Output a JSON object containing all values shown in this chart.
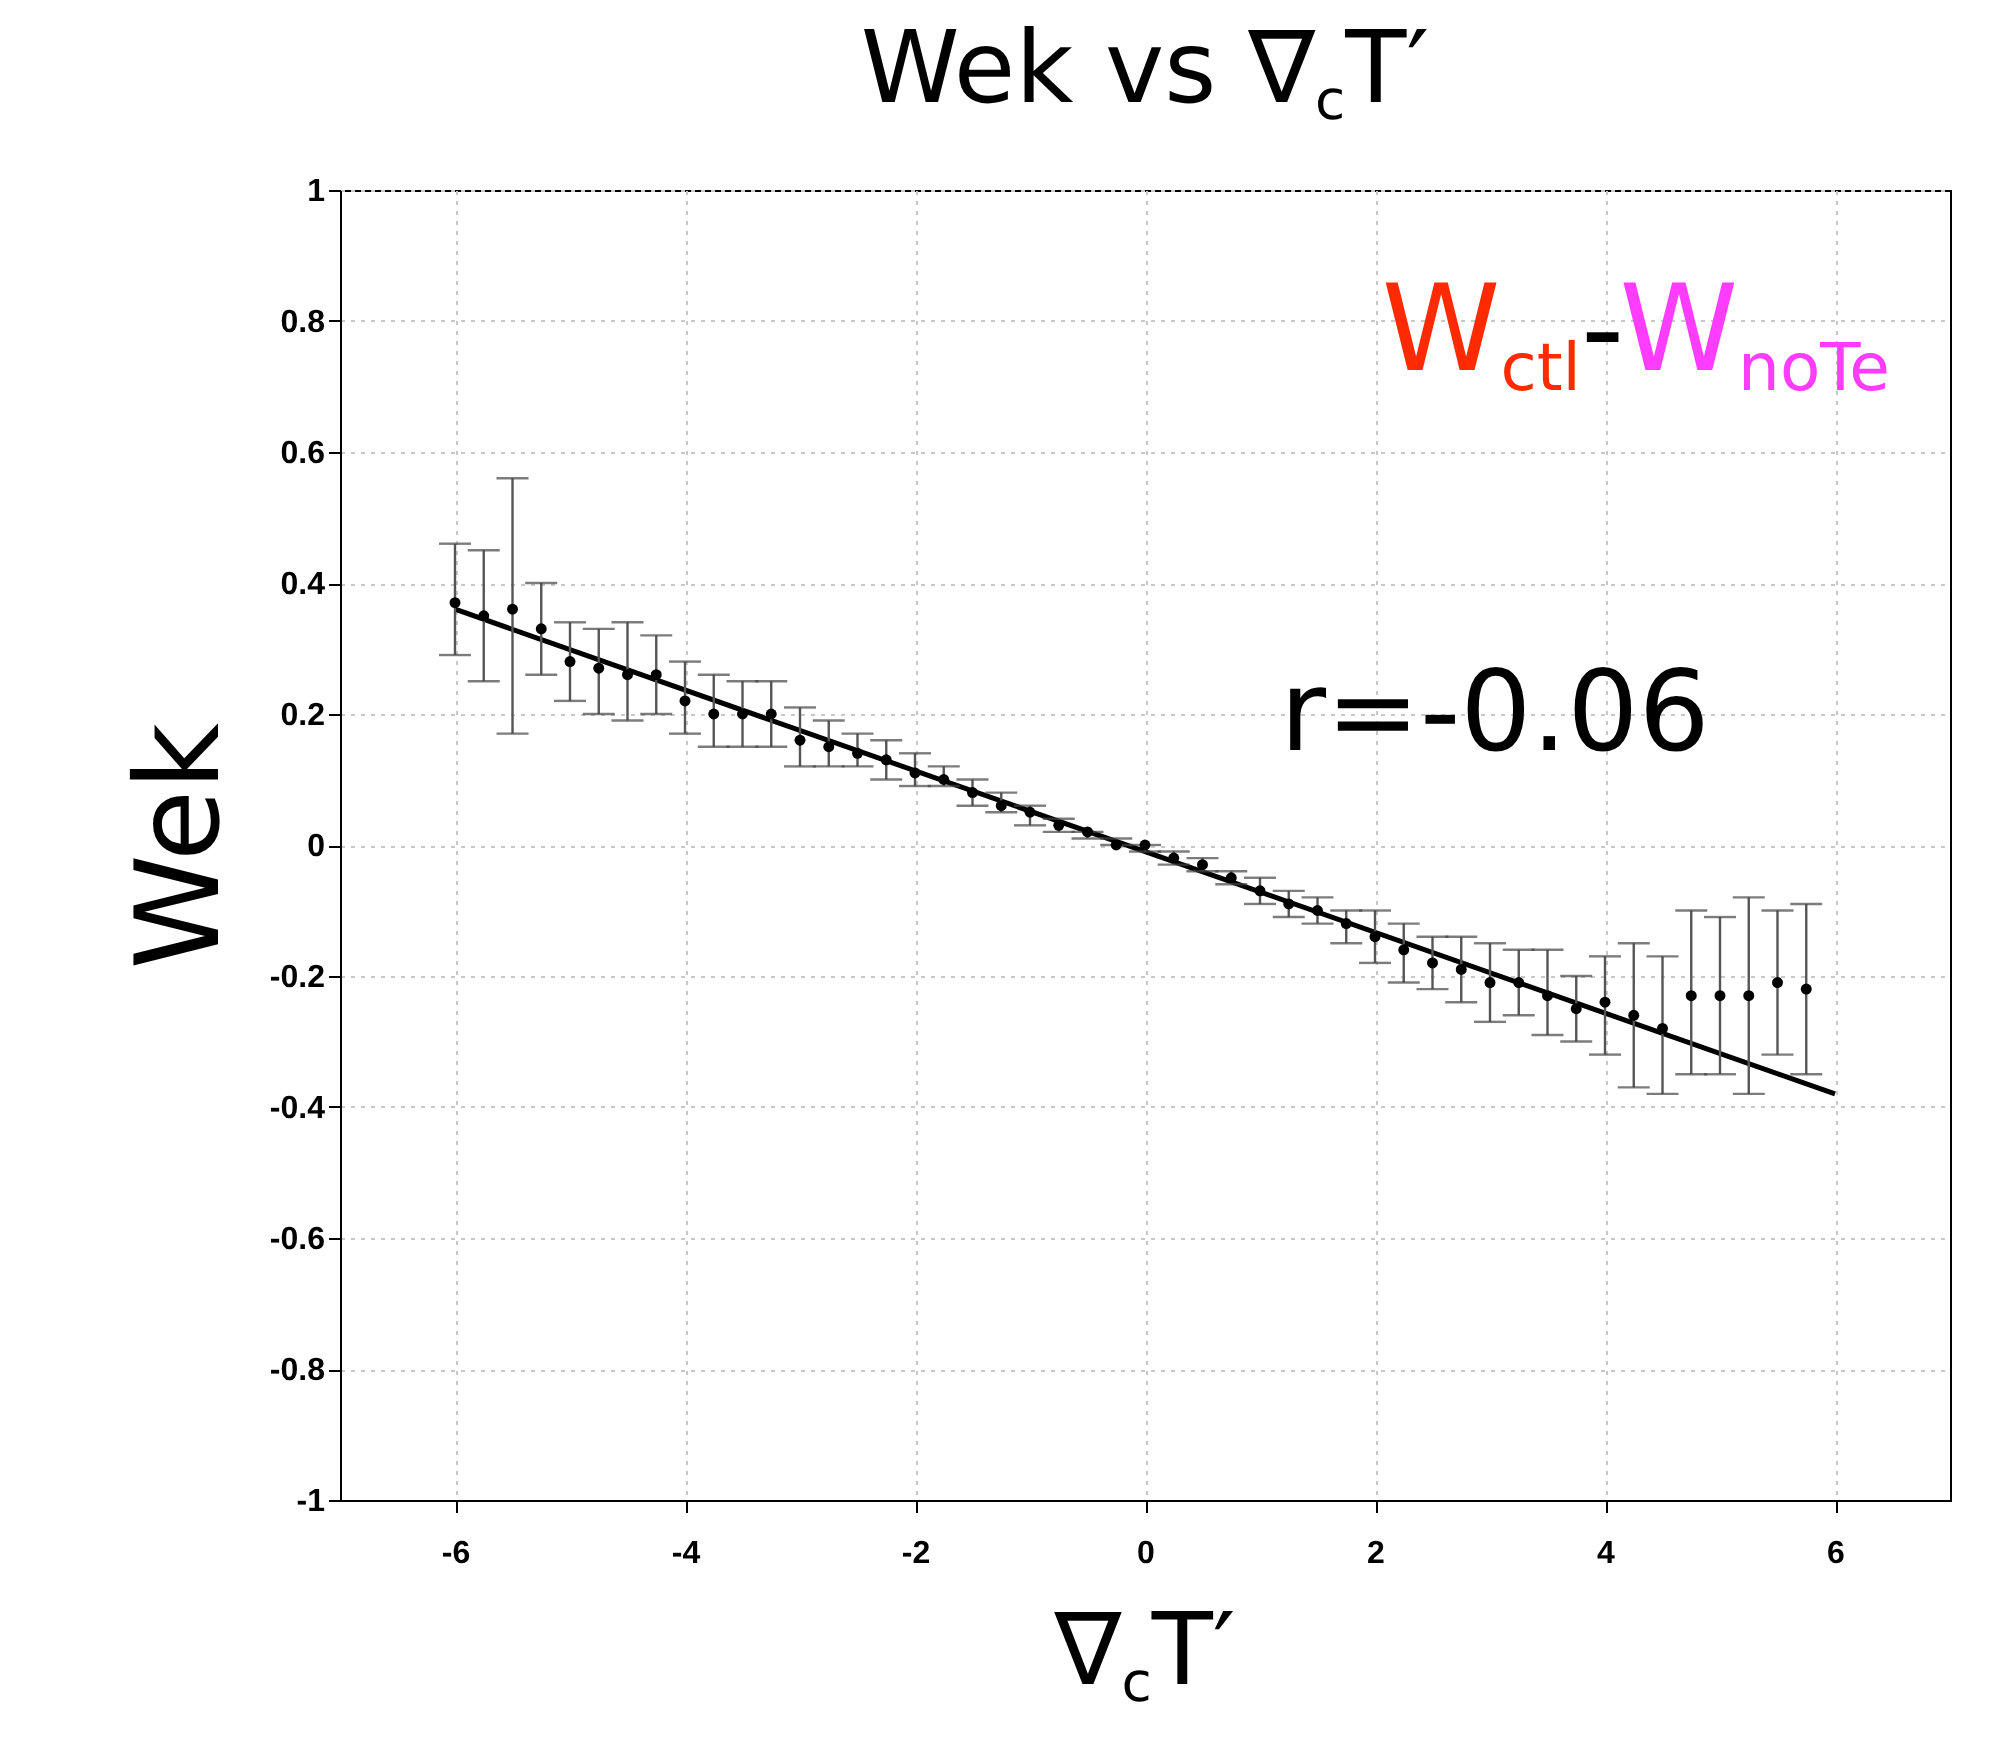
{
  "chart_data": {
    "type": "scatter",
    "title": "Wek vs ∇$_{c}$T′",
    "xlabel": "∇$_{c}$T′",
    "ylabel": "Wek",
    "annotations": [
      "W$_{ctl}$-W$_{noTe}$",
      "r=-0.06"
    ],
    "xlim": [
      -7,
      7
    ],
    "xticks": [
      -6,
      -4,
      -2,
      0,
      2,
      4,
      6
    ],
    "ylim": [
      -1,
      1
    ],
    "yticks": [
      -1,
      -0.8,
      -0.6,
      -0.4,
      -0.2,
      0,
      0.2,
      0.4,
      0.6,
      0.8,
      1
    ],
    "grid": true,
    "series": [
      {
        "color": "#000000",
        "marker": "circle",
        "x": [
          -6,
          -5.75,
          -5.5,
          -5.25,
          -5,
          -4.75,
          -4.5,
          -4.25,
          -4,
          -3.75,
          -3.5,
          -3.25,
          -3,
          -2.75,
          -2.5,
          -2.25,
          -2,
          -1.75,
          -1.5,
          -1.25,
          -1,
          -0.75,
          -0.5,
          -0.25,
          0,
          0.25,
          0.5,
          0.75,
          1,
          1.25,
          1.5,
          1.75,
          2,
          2.25,
          2.5,
          2.75,
          3,
          3.25,
          3.5,
          3.75,
          4,
          4.25,
          4.5,
          4.75,
          5,
          5.25,
          5.5,
          5.75
        ],
        "values": [
          0.37,
          0.35,
          0.36,
          0.33,
          0.28,
          0.27,
          0.26,
          0.26,
          0.22,
          0.2,
          0.2,
          0.2,
          0.16,
          0.15,
          0.14,
          0.13,
          0.11,
          0.1,
          0.08,
          0.06,
          0.05,
          0.03,
          0.02,
          0.0,
          0.0,
          -0.02,
          -0.03,
          -0.05,
          -0.07,
          -0.09,
          -0.1,
          -0.12,
          -0.14,
          -0.16,
          -0.18,
          -0.19,
          -0.21,
          -0.21,
          -0.23,
          -0.25,
          -0.24,
          -0.26,
          -0.28,
          -0.23,
          -0.23,
          -0.23,
          -0.21,
          -0.22
        ],
        "errors": [
          [
            0.29,
            0.46
          ],
          [
            0.25,
            0.45
          ],
          [
            0.17,
            0.56
          ],
          [
            0.26,
            0.4
          ],
          [
            0.22,
            0.34
          ],
          [
            0.2,
            0.33
          ],
          [
            0.19,
            0.34
          ],
          [
            0.2,
            0.32
          ],
          [
            0.17,
            0.28
          ],
          [
            0.15,
            0.26
          ],
          [
            0.15,
            0.25
          ],
          [
            0.15,
            0.25
          ],
          [
            0.12,
            0.21
          ],
          [
            0.12,
            0.19
          ],
          [
            0.12,
            0.17
          ],
          [
            0.1,
            0.16
          ],
          [
            0.09,
            0.14
          ],
          [
            0.09,
            0.12
          ],
          [
            0.06,
            0.1
          ],
          [
            0.05,
            0.08
          ],
          [
            0.03,
            0.06
          ],
          [
            0.02,
            0.04
          ],
          [
            0.01,
            0.02
          ],
          [
            0.0,
            0.01
          ],
          [
            -0.01,
            0.0
          ],
          [
            -0.03,
            -0.01
          ],
          [
            -0.04,
            -0.02
          ],
          [
            -0.06,
            -0.04
          ],
          [
            -0.09,
            -0.05
          ],
          [
            -0.11,
            -0.07
          ],
          [
            -0.12,
            -0.08
          ],
          [
            -0.15,
            -0.1
          ],
          [
            -0.18,
            -0.1
          ],
          [
            -0.21,
            -0.12
          ],
          [
            -0.22,
            -0.14
          ],
          [
            -0.24,
            -0.14
          ],
          [
            -0.27,
            -0.15
          ],
          [
            -0.26,
            -0.16
          ],
          [
            -0.29,
            -0.16
          ],
          [
            -0.3,
            -0.2
          ],
          [
            -0.32,
            -0.17
          ],
          [
            -0.37,
            -0.15
          ],
          [
            -0.38,
            -0.17
          ],
          [
            -0.35,
            -0.1
          ],
          [
            -0.35,
            -0.11
          ],
          [
            -0.38,
            -0.08
          ],
          [
            -0.32,
            -0.1
          ],
          [
            -0.35,
            -0.09
          ]
        ]
      },
      {
        "type": "line",
        "color": "#000000",
        "line_style": "solid",
        "x": [
          -6,
          6
        ],
        "values": [
          0.36,
          -0.38
        ]
      }
    ]
  }
}
